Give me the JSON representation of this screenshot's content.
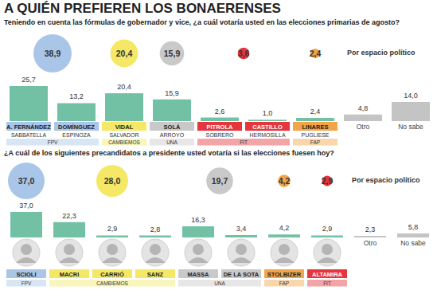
{
  "title": "A QUIÉN PREFIEREN LOS BONAERENSES",
  "chart_data": [
    {
      "type": "bar",
      "title": "Teniendo en cuenta las fórmulas de gobernador y vice, ¿a cuál votaría usted en las elecciones primarias de agosto?",
      "categories": [
        "A. FERNÁNDEZ",
        "DOMÍNGUEZ",
        "VIDAL",
        "SOLÁ",
        "PITROLA",
        "CASTILLO",
        "LINARES",
        "Otro",
        "No sabe"
      ],
      "running_mates": [
        "SABBATELLA",
        "ESPINOZA",
        "SALVADOR",
        "ARROYO",
        "SOBRERO",
        "HERMOSILLA",
        "PUGLIESE",
        null,
        null
      ],
      "parties": [
        "FPV",
        "FPV",
        "CAMBIEMOS",
        "UNA",
        "FIT",
        "FIT",
        "FAP",
        null,
        null
      ],
      "values": [
        25.7,
        13.2,
        20.4,
        15.9,
        2.6,
        1.0,
        2.4,
        4.8,
        14.0
      ],
      "value_labels": [
        "25,7",
        "13,2",
        "20,4",
        "15,9",
        "2,6",
        "1,0",
        "2,4",
        "4,8",
        "14,0"
      ],
      "colors": [
        "#72c1a5",
        "#72c1a5",
        "#72c1a5",
        "#72c1a5",
        "#72c1a5",
        "#72c1a5",
        "#72c1a5",
        "#c4c4c4",
        "#c4c4c4"
      ],
      "data_labels": true,
      "tick_labels": "x",
      "party_totals": {
        "type": "scatter",
        "title": "Por espacio político",
        "categories": [
          "FPV",
          "CAMBIEMOS",
          "UNA",
          "FIT",
          "FAP"
        ],
        "values": [
          38.9,
          20.4,
          15.9,
          3.6,
          2.4
        ],
        "value_labels": [
          "38,9",
          "20,4",
          "15,9",
          "3,6",
          "2,4"
        ],
        "colors": [
          "#a9c6e8",
          "#f5e867",
          "#c9c9c9",
          "#e4363c",
          "#f2a548"
        ],
        "data_labels": true
      }
    },
    {
      "type": "bar",
      "title": "¿A cuál de los siguientes precandidatos a presidente usted votaría si las elecciones fuesen hoy?",
      "categories": [
        "SCIOLI",
        "MACRI",
        "CARRIÓ",
        "SANZ",
        "MASSA",
        "DE LA SOTA",
        "STOLBIZER",
        "ALTAMIRA",
        "Otro",
        "No sabe"
      ],
      "parties": [
        "FPV",
        "CAMBIEMOS",
        "CAMBIEMOS",
        "CAMBIEMOS",
        "UNA",
        "UNA",
        "FAP",
        "FIT",
        null,
        null
      ],
      "values": [
        37.0,
        22.3,
        2.9,
        2.8,
        16.3,
        3.4,
        4.2,
        2.9,
        2.3,
        5.8
      ],
      "value_labels": [
        "37,0",
        "22,3",
        "2,9",
        "2,8",
        "16,3",
        "3,4",
        "4,2",
        "2,9",
        "2,3",
        "5,8"
      ],
      "colors": [
        "#72c1a5",
        "#72c1a5",
        "#72c1a5",
        "#72c1a5",
        "#72c1a5",
        "#72c1a5",
        "#72c1a5",
        "#72c1a5",
        "#c4c4c4",
        "#c4c4c4"
      ],
      "data_labels": true,
      "tick_labels": "x",
      "party_totals": {
        "type": "scatter",
        "title": "Por espacio político",
        "categories": [
          "FPV",
          "CAMBIEMOS",
          "UNA",
          "FAP",
          "FIT"
        ],
        "values": [
          37.0,
          28.0,
          19.7,
          4.2,
          2.9
        ],
        "value_labels": [
          "37,0",
          "28,0",
          "19,7",
          "4,2",
          "2,9"
        ],
        "colors": [
          "#a9c6e8",
          "#f5e867",
          "#c9c9c9",
          "#f2a548",
          "#e4363c"
        ],
        "data_labels": true
      }
    }
  ]
}
